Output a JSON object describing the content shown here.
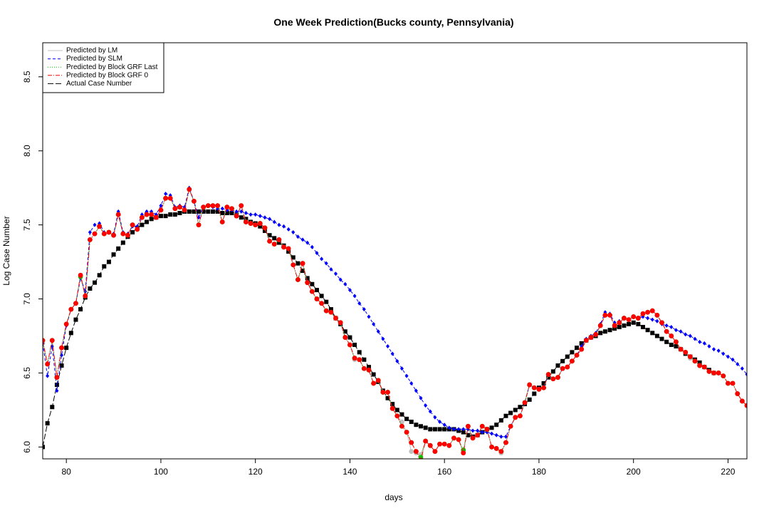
{
  "chart_data": {
    "type": "line",
    "title": "One Week Prediction(Bucks county, Pennsylvania)",
    "x_label": "days",
    "y_label": "Log Case Number",
    "xlim": [
      75,
      224
    ],
    "ylim": [
      5.92,
      8.73
    ],
    "xticks": [
      80,
      100,
      120,
      140,
      160,
      180,
      200,
      220
    ],
    "yticks": [
      {
        "value": 6,
        "label": "6.0"
      },
      {
        "value": 6.5,
        "label": "6.5"
      },
      {
        "value": 7,
        "label": "7.0"
      },
      {
        "value": 7.5,
        "label": "7.5"
      },
      {
        "value": 8,
        "label": "8.0"
      },
      {
        "value": 8.5,
        "label": "8.5"
      }
    ],
    "legend": "top-left",
    "x": [
      75,
      76,
      77,
      78,
      79,
      80,
      81,
      82,
      83,
      84,
      85,
      86,
      87,
      88,
      89,
      90,
      91,
      92,
      93,
      94,
      95,
      96,
      97,
      98,
      99,
      100,
      101,
      102,
      103,
      104,
      105,
      106,
      107,
      108,
      109,
      110,
      111,
      112,
      113,
      114,
      115,
      116,
      117,
      118,
      119,
      120,
      121,
      122,
      123,
      124,
      125,
      126,
      127,
      128,
      129,
      130,
      131,
      132,
      133,
      134,
      135,
      136,
      137,
      138,
      139,
      140,
      141,
      142,
      143,
      144,
      145,
      146,
      147,
      148,
      149,
      150,
      151,
      152,
      153,
      154,
      155,
      156,
      157,
      158,
      159,
      160,
      161,
      162,
      163,
      164,
      165,
      166,
      167,
      168,
      169,
      170,
      171,
      172,
      173,
      174,
      175,
      176,
      177,
      178,
      179,
      180,
      181,
      182,
      183,
      184,
      185,
      186,
      187,
      188,
      189,
      190,
      191,
      192,
      193,
      194,
      195,
      196,
      197,
      198,
      199,
      200,
      201,
      202,
      203,
      204,
      205,
      206,
      207,
      208,
      209,
      210,
      211,
      212,
      213,
      214,
      215,
      216,
      217,
      218,
      219,
      220,
      221,
      222,
      223,
      224
    ],
    "series": [
      {
        "name": "Predicted by LM",
        "color": "#c0c0c0",
        "line": "solid",
        "marker": "circle",
        "values": [
          6.7,
          6.56,
          6.72,
          6.47,
          6.67,
          6.83,
          6.93,
          6.97,
          7.16,
          7.02,
          7.4,
          7.44,
          7.49,
          7.44,
          7.45,
          7.43,
          7.57,
          7.44,
          7.43,
          7.5,
          7.47,
          7.55,
          7.57,
          7.57,
          7.55,
          7.6,
          7.68,
          7.68,
          7.61,
          7.62,
          7.6,
          7.74,
          7.66,
          7.5,
          7.62,
          7.63,
          7.63,
          7.63,
          7.52,
          7.62,
          7.61,
          7.56,
          7.63,
          7.52,
          7.51,
          7.5,
          7.51,
          7.48,
          7.39,
          7.37,
          7.4,
          7.35,
          7.34,
          7.23,
          7.13,
          7.24,
          7.11,
          7.05,
          7.0,
          6.97,
          6.92,
          6.91,
          6.87,
          6.84,
          6.74,
          6.69,
          6.59,
          6.59,
          6.53,
          6.52,
          6.43,
          6.45,
          6.37,
          6.37,
          6.26,
          6.21,
          6.17,
          6.1,
          5.97,
          5.96,
          5.95,
          6.04,
          6.01,
          5.97,
          6.02,
          6.02,
          6.01,
          6.06,
          6.05,
          5.97,
          6.14,
          6.06,
          6.08,
          6.14,
          6.12,
          6.0,
          5.99,
          5.96,
          6.03,
          6.14,
          6.2,
          6.21,
          6.3,
          6.42,
          6.4,
          6.39,
          6.4,
          6.49,
          6.46,
          6.47,
          6.53,
          6.54,
          6.58,
          6.62,
          6.66,
          6.72,
          6.74,
          6.76,
          6.82,
          6.89,
          6.89,
          6.82,
          6.84,
          6.87,
          6.86,
          6.88,
          6.87,
          6.9,
          6.91,
          6.92,
          6.89,
          6.84,
          6.78,
          6.75,
          6.71,
          6.66,
          6.64,
          6.6,
          6.58,
          6.55,
          6.54,
          6.51,
          6.5,
          6.5,
          6.48,
          6.43,
          6.43,
          6.36,
          6.31,
          6.28
        ]
      },
      {
        "name": "Predicted by SLM",
        "color": "#0000ff",
        "line": "dashed",
        "marker": "diamond",
        "values": [
          6.7,
          6.48,
          6.68,
          6.38,
          6.62,
          6.82,
          6.93,
          6.97,
          7.14,
          7.05,
          7.45,
          7.5,
          7.51,
          7.45,
          7.45,
          7.44,
          7.59,
          7.45,
          7.44,
          7.49,
          7.49,
          7.57,
          7.59,
          7.59,
          7.57,
          7.63,
          7.71,
          7.7,
          7.62,
          7.63,
          7.62,
          7.75,
          7.66,
          7.55,
          7.62,
          7.63,
          7.62,
          7.61,
          7.61,
          7.6,
          7.6,
          7.59,
          7.59,
          7.58,
          7.57,
          7.57,
          7.56,
          7.55,
          7.54,
          7.52,
          7.5,
          7.49,
          7.47,
          7.45,
          7.42,
          7.4,
          7.38,
          7.35,
          7.31,
          7.27,
          7.24,
          7.2,
          7.17,
          7.13,
          7.1,
          7.06,
          7.02,
          6.97,
          6.93,
          6.88,
          6.83,
          6.78,
          6.73,
          6.68,
          6.63,
          6.58,
          6.53,
          6.48,
          6.43,
          6.38,
          6.33,
          6.28,
          6.24,
          6.2,
          6.17,
          6.15,
          6.13,
          6.12,
          6.12,
          6.12,
          6.12,
          6.11,
          6.11,
          6.1,
          6.1,
          6.09,
          6.08,
          6.07,
          6.07,
          6.14,
          6.2,
          6.21,
          6.3,
          6.42,
          6.4,
          6.39,
          6.4,
          6.49,
          6.46,
          6.47,
          6.53,
          6.54,
          6.58,
          6.62,
          6.68,
          6.73,
          6.75,
          6.77,
          6.83,
          6.91,
          6.9,
          6.84,
          6.85,
          6.87,
          6.86,
          6.88,
          6.87,
          6.88,
          6.87,
          6.86,
          6.85,
          6.83,
          6.82,
          6.81,
          6.79,
          6.78,
          6.76,
          6.75,
          6.73,
          6.71,
          6.7,
          6.68,
          6.66,
          6.65,
          6.63,
          6.61,
          6.59,
          6.56,
          6.53,
          6.49
        ]
      },
      {
        "name": "Predicted by Block GRF Last",
        "color": "#00cc00",
        "line": "dotted",
        "marker": "circle",
        "values": [
          6.72,
          6.56,
          6.72,
          6.47,
          6.67,
          6.83,
          6.93,
          6.97,
          7.15,
          7.02,
          7.4,
          7.44,
          7.49,
          7.44,
          7.45,
          7.43,
          7.57,
          7.44,
          7.43,
          7.5,
          7.47,
          7.55,
          7.57,
          7.57,
          7.55,
          7.6,
          7.68,
          7.68,
          7.61,
          7.62,
          7.6,
          7.74,
          7.66,
          7.5,
          7.62,
          7.63,
          7.63,
          7.63,
          7.52,
          7.62,
          7.61,
          7.56,
          7.63,
          7.52,
          7.51,
          7.5,
          7.51,
          7.48,
          7.39,
          7.37,
          7.4,
          7.35,
          7.34,
          7.23,
          7.13,
          7.24,
          7.11,
          7.05,
          7.0,
          6.97,
          6.92,
          6.91,
          6.87,
          6.84,
          6.74,
          6.69,
          6.6,
          6.59,
          6.53,
          6.52,
          6.43,
          6.45,
          6.37,
          6.37,
          6.26,
          6.21,
          6.14,
          6.1,
          6.03,
          5.97,
          5.93,
          6.04,
          6.01,
          5.97,
          6.02,
          6.02,
          6.01,
          6.06,
          6.05,
          5.98,
          6.14,
          6.06,
          6.08,
          6.14,
          6.12,
          6.0,
          5.99,
          5.97,
          6.03,
          6.14,
          6.2,
          6.21,
          6.3,
          6.42,
          6.4,
          6.39,
          6.4,
          6.49,
          6.46,
          6.47,
          6.53,
          6.54,
          6.58,
          6.62,
          6.66,
          6.72,
          6.74,
          6.76,
          6.82,
          6.89,
          6.89,
          6.82,
          6.84,
          6.87,
          6.86,
          6.88,
          6.87,
          6.9,
          6.91,
          6.92,
          6.89,
          6.84,
          6.78,
          6.75,
          6.71,
          6.66,
          6.64,
          6.61,
          6.58,
          6.55,
          6.54,
          6.51,
          6.5,
          6.5,
          6.48,
          6.43,
          6.43,
          6.36,
          6.31,
          6.28
        ]
      },
      {
        "name": "Predicted by Block GRF 0",
        "color": "#ff0000",
        "line": "dotdash",
        "marker": "circle",
        "values": [
          6.72,
          6.56,
          6.72,
          6.47,
          6.67,
          6.83,
          6.93,
          6.97,
          7.16,
          7.02,
          7.4,
          7.44,
          7.49,
          7.44,
          7.45,
          7.43,
          7.57,
          7.44,
          7.43,
          7.5,
          7.47,
          7.55,
          7.57,
          7.57,
          7.55,
          7.6,
          7.68,
          7.68,
          7.61,
          7.62,
          7.6,
          7.74,
          7.66,
          7.5,
          7.62,
          7.63,
          7.63,
          7.63,
          7.52,
          7.62,
          7.61,
          7.56,
          7.63,
          7.52,
          7.51,
          7.5,
          7.51,
          7.48,
          7.39,
          7.37,
          7.4,
          7.35,
          7.34,
          7.23,
          7.13,
          7.24,
          7.11,
          7.05,
          7.0,
          6.97,
          6.92,
          6.91,
          6.87,
          6.84,
          6.74,
          6.69,
          6.6,
          6.59,
          6.53,
          6.52,
          6.43,
          6.45,
          6.37,
          6.37,
          6.26,
          6.21,
          6.14,
          6.1,
          6.03,
          5.97,
          5.91,
          6.04,
          6.01,
          5.97,
          6.02,
          6.02,
          6.01,
          6.06,
          6.05,
          5.96,
          6.14,
          6.06,
          6.08,
          6.14,
          6.12,
          6.0,
          5.99,
          5.97,
          6.03,
          6.14,
          6.2,
          6.21,
          6.3,
          6.42,
          6.4,
          6.39,
          6.4,
          6.49,
          6.46,
          6.47,
          6.53,
          6.54,
          6.58,
          6.62,
          6.66,
          6.72,
          6.74,
          6.76,
          6.82,
          6.89,
          6.89,
          6.82,
          6.84,
          6.87,
          6.86,
          6.88,
          6.87,
          6.9,
          6.91,
          6.92,
          6.89,
          6.84,
          6.78,
          6.75,
          6.71,
          6.66,
          6.64,
          6.61,
          6.58,
          6.55,
          6.54,
          6.51,
          6.5,
          6.5,
          6.48,
          6.43,
          6.43,
          6.36,
          6.31,
          6.28
        ]
      },
      {
        "name": "Actual Case Number",
        "color": "#000000",
        "line": "longdash",
        "marker": "square",
        "values": [
          6.0,
          6.16,
          6.27,
          6.42,
          6.55,
          6.67,
          6.77,
          6.86,
          6.93,
          7.01,
          7.07,
          7.11,
          7.16,
          7.22,
          7.25,
          7.3,
          7.34,
          7.38,
          7.42,
          7.45,
          7.48,
          7.5,
          7.52,
          7.54,
          7.55,
          7.56,
          7.56,
          7.57,
          7.57,
          7.58,
          7.59,
          7.59,
          7.59,
          7.59,
          7.59,
          7.59,
          7.59,
          7.59,
          7.58,
          7.58,
          7.58,
          7.57,
          7.55,
          7.54,
          7.52,
          7.51,
          7.49,
          7.46,
          7.43,
          7.41,
          7.38,
          7.36,
          7.32,
          7.28,
          7.24,
          7.19,
          7.14,
          7.1,
          7.06,
          7.02,
          6.98,
          6.93,
          6.87,
          6.83,
          6.78,
          6.74,
          6.69,
          6.64,
          6.59,
          6.54,
          6.49,
          6.44,
          6.38,
          6.33,
          6.29,
          6.25,
          6.22,
          6.19,
          6.17,
          6.15,
          6.14,
          6.13,
          6.12,
          6.12,
          6.12,
          6.12,
          6.12,
          6.12,
          6.11,
          6.1,
          6.08,
          6.07,
          6.08,
          6.1,
          6.12,
          6.13,
          6.15,
          6.18,
          6.21,
          6.23,
          6.25,
          6.27,
          6.29,
          6.32,
          6.36,
          6.4,
          6.43,
          6.47,
          6.51,
          6.55,
          6.58,
          6.61,
          6.64,
          6.67,
          6.7,
          6.72,
          6.74,
          6.75,
          6.77,
          6.78,
          6.79,
          6.8,
          6.81,
          6.82,
          6.83,
          6.84,
          6.83,
          6.81,
          6.79,
          6.77,
          6.75,
          6.73,
          6.71,
          6.69,
          6.68,
          6.66,
          6.63,
          6.61,
          6.59,
          6.57,
          6.54,
          6.52,
          6.5,
          null,
          null,
          null,
          null,
          null,
          null,
          null
        ]
      }
    ]
  }
}
